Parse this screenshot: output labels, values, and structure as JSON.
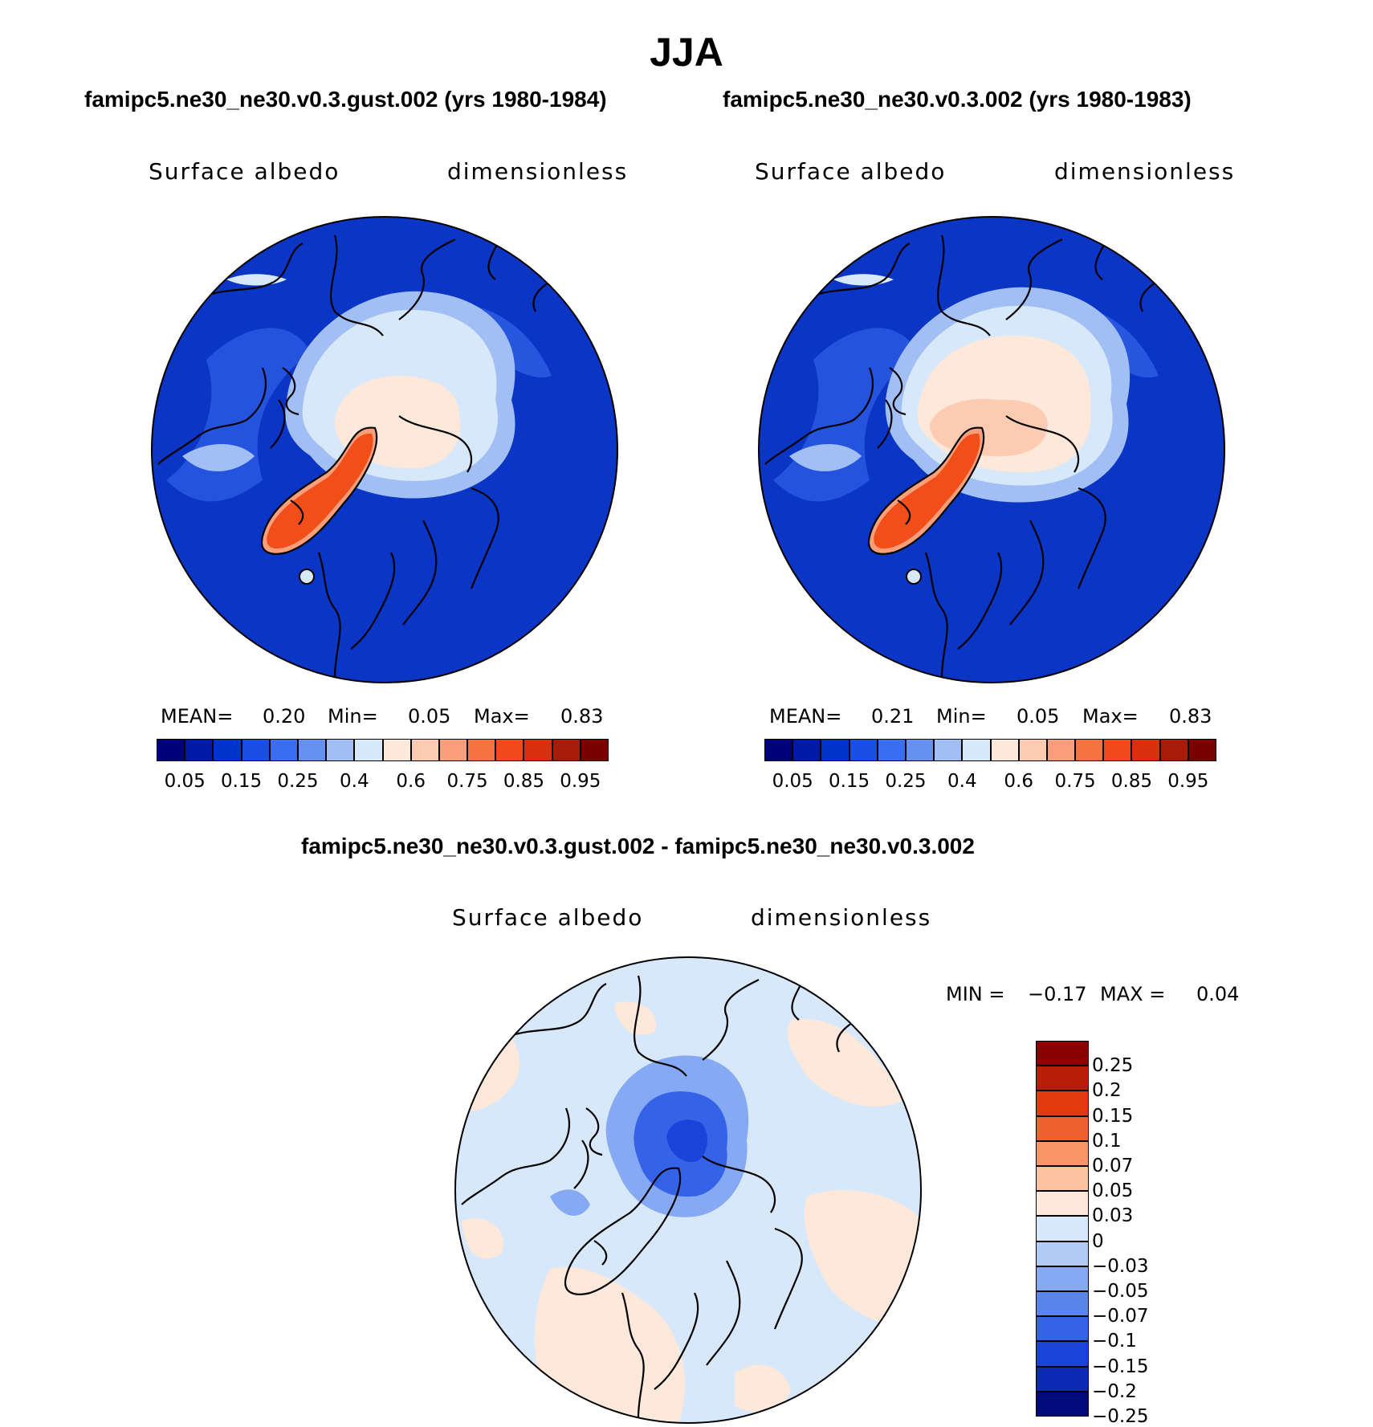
{
  "figure": {
    "season": "JJA"
  },
  "panels": [
    {
      "id": "test",
      "title": "famipc5.ne30_ne30.v0.3.gust.002 (yrs 1980-1984)",
      "variable": "Surface albedo",
      "units": "dimensionless",
      "stats": {
        "mean_label": "MEAN=",
        "mean": "0.20",
        "min_label": "Min=",
        "min": "0.05",
        "max_label": "Max=",
        "max": "0.83"
      }
    },
    {
      "id": "control",
      "title": "famipc5.ne30_ne30.v0.3.002 (yrs 1980-1983)",
      "variable": "Surface albedo",
      "units": "dimensionless",
      "stats": {
        "mean_label": "MEAN=",
        "mean": "0.21",
        "min_label": "Min=",
        "min": "0.05",
        "max_label": "Max=",
        "max": "0.83"
      }
    },
    {
      "id": "difference",
      "title": "famipc5.ne30_ne30.v0.3.gust.002 - famipc5.ne30_ne30.v0.3.002",
      "variable": "Surface albedo",
      "units": "dimensionless",
      "stats": {
        "min_label": "MIN =",
        "min": "−0.17",
        "max_label": "MAX =",
        "max": "0.04"
      }
    }
  ],
  "colorbars": {
    "albedo": {
      "colors": [
        "#00007a",
        "#0019a8",
        "#0033c9",
        "#1a4fe6",
        "#3a6ef2",
        "#6690f2",
        "#a2bff5",
        "#d8e8fb",
        "#fde8d9",
        "#fccbb1",
        "#fb9f7a",
        "#f67340",
        "#f04a1c",
        "#d92f0c",
        "#a81c0a",
        "#7a0000"
      ],
      "tick_labels": [
        "0.05",
        "0.15",
        "0.25",
        "0.4",
        "0.6",
        "0.75",
        "0.85",
        "0.95"
      ]
    },
    "difference": {
      "colors": [
        "#8b0000",
        "#b81d0a",
        "#e03a0e",
        "#f0602e",
        "#f99567",
        "#fcc3a3",
        "#fde8d9",
        "#d8e8fb",
        "#b1cbf5",
        "#85a9f2",
        "#5a86ec",
        "#3463e8",
        "#1a43da",
        "#0b2ab6",
        "#000a7a"
      ],
      "tick_labels": [
        "0.25",
        "0.2",
        "0.15",
        "0.1",
        "0.07",
        "0.05",
        "0.03",
        "0",
        "−0.03",
        "−0.05",
        "−0.07",
        "−0.1",
        "−0.15",
        "−0.2",
        "−0.25"
      ]
    }
  },
  "map_fields": {
    "test": {
      "ocean": "#0b35c4",
      "subpolar": "#3a6ef2",
      "margin": "#a2bff5",
      "icepack": "#d8e8fb",
      "central_ice": "#fde8d9",
      "greenland": "#f24e1a",
      "greenland_edge": "#fb9f7a"
    },
    "control": {
      "ocean": "#0b35c4",
      "subpolar": "#3a6ef2",
      "margin": "#a2bff5",
      "icepack": "#d8e8fb",
      "central_ice": "#fde8d9",
      "central_core": "#fccbb1",
      "greenland": "#f24e1a",
      "greenland_edge": "#fb9f7a"
    },
    "difference": {
      "background": "#d8e8fb",
      "positive": "#fde8d9",
      "weak_negative": "#85a9f2",
      "strong_negative": "#3463e8",
      "core_negative": "#1a43da"
    }
  }
}
